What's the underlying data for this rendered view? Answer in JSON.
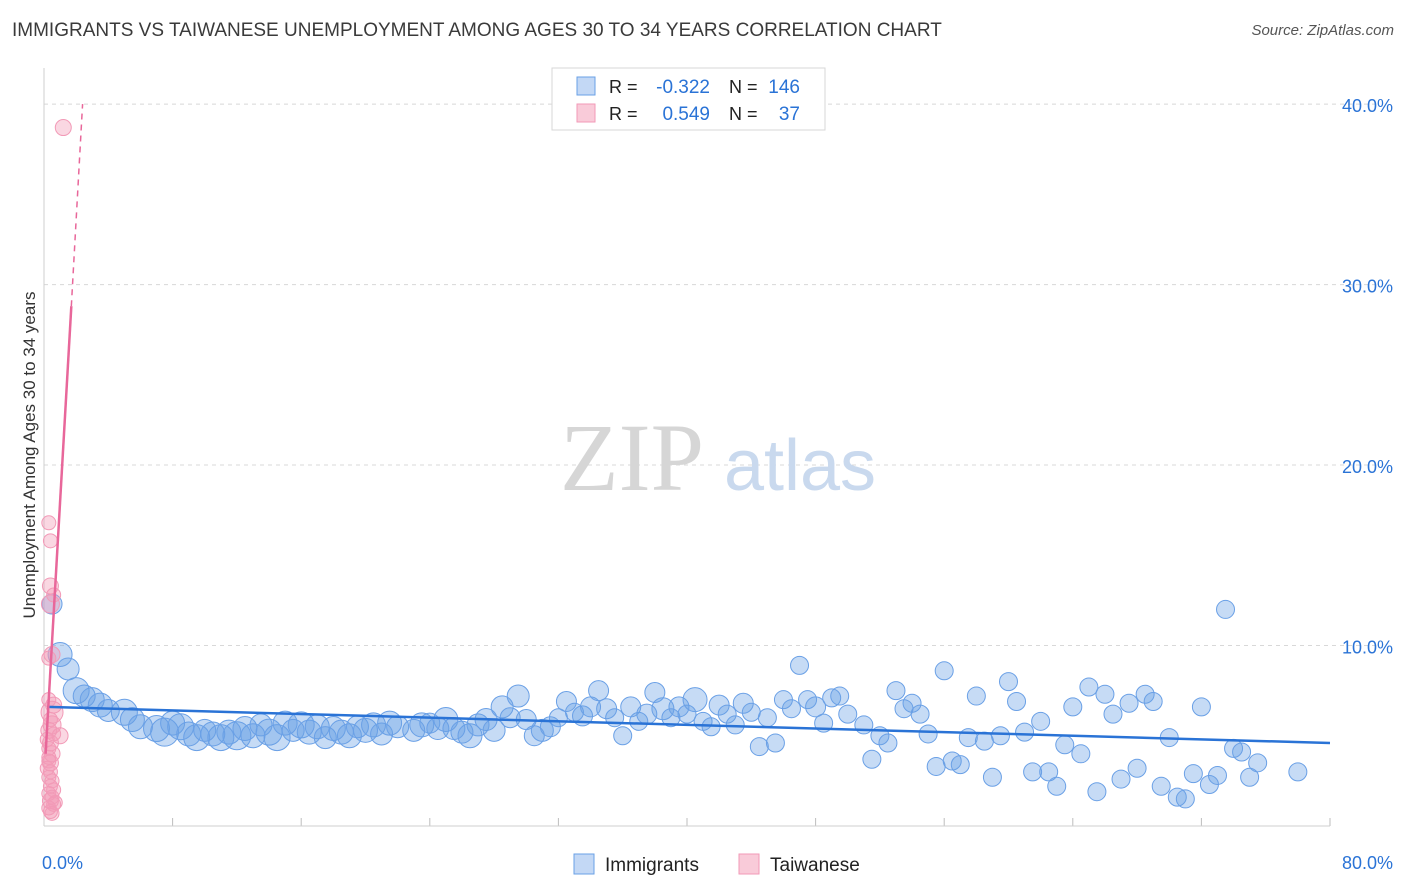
{
  "title": "IMMIGRANTS VS TAIWANESE UNEMPLOYMENT AMONG AGES 30 TO 34 YEARS CORRELATION CHART",
  "source": "Source: ZipAtlas.com",
  "watermark": {
    "zip": "ZIP",
    "atlas": "atlas"
  },
  "colors": {
    "immigrants": "#6aa0e6",
    "immigrants_line": "#2a73d6",
    "taiwanese": "#f29ab7",
    "taiwanese_line": "#e8679a",
    "value_text": "#2a73d6",
    "grid": "#d8d8d8"
  },
  "legend_box": {
    "rows": [
      {
        "r_label": "R =",
        "r_value": "-0.322",
        "n_label": "N =",
        "n_value": "146"
      },
      {
        "r_label": "R =",
        "r_value": "0.549",
        "n_label": "N =",
        "n_value": "37"
      }
    ]
  },
  "chart_data": {
    "type": "scatter",
    "title": "IMMIGRANTS VS TAIWANESE UNEMPLOYMENT AMONG AGES 30 TO 34 YEARS CORRELATION CHART",
    "xlabel": "",
    "ylabel": "Unemployment Among Ages 30 to 34 years",
    "xlim": [
      0,
      80
    ],
    "ylim": [
      0,
      42
    ],
    "x_tick_labels": [
      "0.0%",
      "80.0%"
    ],
    "y_ticks": [
      10,
      20,
      30,
      40
    ],
    "y_tick_labels": [
      "10.0%",
      "20.0%",
      "30.0%",
      "40.0%"
    ],
    "grid": true,
    "legend_position": "bottom-center",
    "series": [
      {
        "name": "Immigrants",
        "r": -0.322,
        "n": 146,
        "trend": {
          "x": [
            0.2,
            80
          ],
          "y": [
            6.6,
            4.6
          ]
        },
        "points": [
          [
            0.5,
            12.3,
            10
          ],
          [
            1,
            9.5,
            12
          ],
          [
            1.5,
            8.7,
            11
          ],
          [
            2,
            7.5,
            13
          ],
          [
            2.5,
            7.2,
            11
          ],
          [
            3,
            7.0,
            12
          ],
          [
            3.5,
            6.7,
            12
          ],
          [
            4,
            6.4,
            11
          ],
          [
            5,
            6.3,
            13
          ],
          [
            5.5,
            5.9,
            12
          ],
          [
            6,
            5.5,
            12
          ],
          [
            7,
            5.4,
            13
          ],
          [
            7.5,
            5.2,
            14
          ],
          [
            8,
            5.7,
            12
          ],
          [
            8.5,
            5.5,
            13
          ],
          [
            9,
            5.1,
            12
          ],
          [
            9.5,
            4.9,
            13
          ],
          [
            10,
            5.3,
            11
          ],
          [
            10.5,
            5.1,
            12
          ],
          [
            11,
            4.9,
            13
          ],
          [
            11.5,
            5.2,
            12
          ],
          [
            12,
            5.0,
            14
          ],
          [
            12.5,
            5.4,
            12
          ],
          [
            13,
            5.0,
            12
          ],
          [
            13.5,
            5.6,
            11
          ],
          [
            14,
            5.2,
            13
          ],
          [
            14.5,
            4.9,
            13
          ],
          [
            15,
            5.7,
            12
          ],
          [
            15.5,
            5.3,
            11
          ],
          [
            16,
            5.6,
            13
          ],
          [
            16.5,
            5.2,
            12
          ],
          [
            17,
            5.5,
            12
          ],
          [
            17.5,
            4.9,
            11
          ],
          [
            18,
            5.4,
            12
          ],
          [
            18.5,
            5.2,
            12
          ],
          [
            19,
            5.0,
            12
          ],
          [
            19.5,
            5.5,
            11
          ],
          [
            20,
            5.3,
            12
          ],
          [
            20.5,
            5.6,
            12
          ],
          [
            21,
            5.1,
            11
          ],
          [
            21.5,
            5.7,
            12
          ],
          [
            22,
            5.5,
            11
          ],
          [
            23,
            5.3,
            11
          ],
          [
            23.5,
            5.6,
            12
          ],
          [
            24,
            5.7,
            10
          ],
          [
            24.5,
            5.4,
            11
          ],
          [
            25,
            5.9,
            12
          ],
          [
            25.5,
            5.4,
            11
          ],
          [
            26,
            5.2,
            11
          ],
          [
            26.5,
            5.0,
            12
          ],
          [
            27,
            5.6,
            11
          ],
          [
            27.5,
            5.9,
            11
          ],
          [
            28,
            5.3,
            11
          ],
          [
            28.5,
            6.6,
            11
          ],
          [
            29,
            6.0,
            10
          ],
          [
            29.5,
            7.2,
            11
          ],
          [
            30,
            5.9,
            10
          ],
          [
            30.5,
            5.0,
            10
          ],
          [
            31,
            5.3,
            11
          ],
          [
            31.5,
            5.5,
            10
          ],
          [
            32,
            6.0,
            9
          ],
          [
            32.5,
            6.9,
            10
          ],
          [
            33,
            6.3,
            9
          ],
          [
            33.5,
            6.1,
            10
          ],
          [
            34,
            6.6,
            10
          ],
          [
            34.5,
            7.5,
            10
          ],
          [
            35,
            6.5,
            10
          ],
          [
            35.5,
            6.0,
            9
          ],
          [
            36,
            5.0,
            9
          ],
          [
            36.5,
            6.6,
            10
          ],
          [
            37,
            5.8,
            9
          ],
          [
            37.5,
            6.2,
            10
          ],
          [
            38,
            7.4,
            10
          ],
          [
            38.5,
            6.5,
            11
          ],
          [
            39,
            6.0,
            9
          ],
          [
            39.5,
            6.6,
            10
          ],
          [
            40,
            6.2,
            9
          ],
          [
            40.5,
            7.0,
            12
          ],
          [
            41,
            5.8,
            9
          ],
          [
            41.5,
            5.5,
            9
          ],
          [
            42,
            6.7,
            10
          ],
          [
            42.5,
            6.2,
            9
          ],
          [
            43,
            5.6,
            9
          ],
          [
            43.5,
            6.8,
            10
          ],
          [
            44,
            6.3,
            9
          ],
          [
            44.5,
            4.4,
            9
          ],
          [
            45,
            6.0,
            9
          ],
          [
            45.5,
            4.6,
            9
          ],
          [
            46,
            7.0,
            9
          ],
          [
            46.5,
            6.5,
            9
          ],
          [
            47,
            8.9,
            9
          ],
          [
            47.5,
            7.0,
            9
          ],
          [
            48,
            6.6,
            10
          ],
          [
            48.5,
            5.7,
            9
          ],
          [
            49,
            7.1,
            9
          ],
          [
            49.5,
            7.2,
            9
          ],
          [
            50,
            6.2,
            9
          ],
          [
            51,
            5.6,
            9
          ],
          [
            51.5,
            3.7,
            9
          ],
          [
            52,
            5.0,
            9
          ],
          [
            52.5,
            4.6,
            9
          ],
          [
            53,
            7.5,
            9
          ],
          [
            53.5,
            6.5,
            9
          ],
          [
            54,
            6.8,
            9
          ],
          [
            54.5,
            6.2,
            9
          ],
          [
            55,
            5.1,
            9
          ],
          [
            55.5,
            3.3,
            9
          ],
          [
            56,
            8.6,
            9
          ],
          [
            56.5,
            3.6,
            9
          ],
          [
            57,
            3.4,
            9
          ],
          [
            57.5,
            4.9,
            9
          ],
          [
            58,
            7.2,
            9
          ],
          [
            58.5,
            4.7,
            9
          ],
          [
            59,
            2.7,
            9
          ],
          [
            59.5,
            5.0,
            9
          ],
          [
            60,
            8.0,
            9
          ],
          [
            60.5,
            6.9,
            9
          ],
          [
            61,
            5.2,
            9
          ],
          [
            61.5,
            3.0,
            9
          ],
          [
            62,
            5.8,
            9
          ],
          [
            62.5,
            3.0,
            9
          ],
          [
            63,
            2.2,
            9
          ],
          [
            63.5,
            4.5,
            9
          ],
          [
            64,
            6.6,
            9
          ],
          [
            64.5,
            4.0,
            9
          ],
          [
            65,
            7.7,
            9
          ],
          [
            65.5,
            1.9,
            9
          ],
          [
            66,
            7.3,
            9
          ],
          [
            66.5,
            6.2,
            9
          ],
          [
            67,
            2.6,
            9
          ],
          [
            67.5,
            6.8,
            9
          ],
          [
            68,
            3.2,
            9
          ],
          [
            68.5,
            7.3,
            9
          ],
          [
            69,
            6.9,
            9
          ],
          [
            69.5,
            2.2,
            9
          ],
          [
            70,
            4.9,
            9
          ],
          [
            70.5,
            1.6,
            9
          ],
          [
            71,
            1.5,
            9
          ],
          [
            71.5,
            2.9,
            9
          ],
          [
            72,
            6.6,
            9
          ],
          [
            72.5,
            2.3,
            9
          ],
          [
            73,
            2.8,
            9
          ],
          [
            73.5,
            12.0,
            9
          ],
          [
            74,
            4.3,
            9
          ],
          [
            74.5,
            4.1,
            9
          ],
          [
            75,
            2.7,
            9
          ],
          [
            75.5,
            3.5,
            9
          ],
          [
            78,
            3.0,
            9
          ]
        ]
      },
      {
        "name": "Taiwanese",
        "r": 0.549,
        "n": 37,
        "trend": {
          "x": [
            0.1,
            1.7
          ],
          "y": [
            4.0,
            28.8
          ]
        },
        "trend_extension": {
          "x": [
            1.7,
            2.4
          ],
          "y": [
            28.8,
            40.0
          ]
        },
        "points": [
          [
            1.2,
            38.7,
            8
          ],
          [
            0.3,
            16.8,
            7
          ],
          [
            0.4,
            15.8,
            7
          ],
          [
            0.4,
            13.3,
            8
          ],
          [
            0.6,
            12.8,
            7
          ],
          [
            0.4,
            12.3,
            9
          ],
          [
            0.5,
            9.5,
            8
          ],
          [
            0.3,
            9.3,
            7
          ],
          [
            0.3,
            7.0,
            7
          ],
          [
            0.6,
            6.7,
            8
          ],
          [
            0.5,
            6.3,
            11
          ],
          [
            0.4,
            5.9,
            7
          ],
          [
            0.5,
            5.6,
            9
          ],
          [
            0.3,
            5.3,
            8
          ],
          [
            0.6,
            5.1,
            7
          ],
          [
            1.0,
            5.0,
            8
          ],
          [
            0.2,
            4.8,
            7
          ],
          [
            0.4,
            4.6,
            8
          ],
          [
            0.3,
            4.3,
            7
          ],
          [
            0.5,
            4.0,
            8
          ],
          [
            0.3,
            3.8,
            7
          ],
          [
            0.4,
            3.5,
            8
          ],
          [
            0.2,
            3.2,
            7
          ],
          [
            0.4,
            3.0,
            7
          ],
          [
            0.3,
            2.7,
            7
          ],
          [
            0.5,
            2.5,
            7
          ],
          [
            0.4,
            2.2,
            7
          ],
          [
            0.6,
            2.0,
            7
          ],
          [
            0.3,
            1.8,
            7
          ],
          [
            0.5,
            1.6,
            7
          ],
          [
            0.4,
            1.4,
            8
          ],
          [
            0.6,
            1.2,
            7
          ],
          [
            0.3,
            1.0,
            7
          ],
          [
            0.4,
            0.8,
            7
          ],
          [
            0.5,
            0.7,
            7
          ],
          [
            0.3,
            3.6,
            7
          ],
          [
            0.7,
            1.3,
            7
          ]
        ]
      }
    ]
  }
}
